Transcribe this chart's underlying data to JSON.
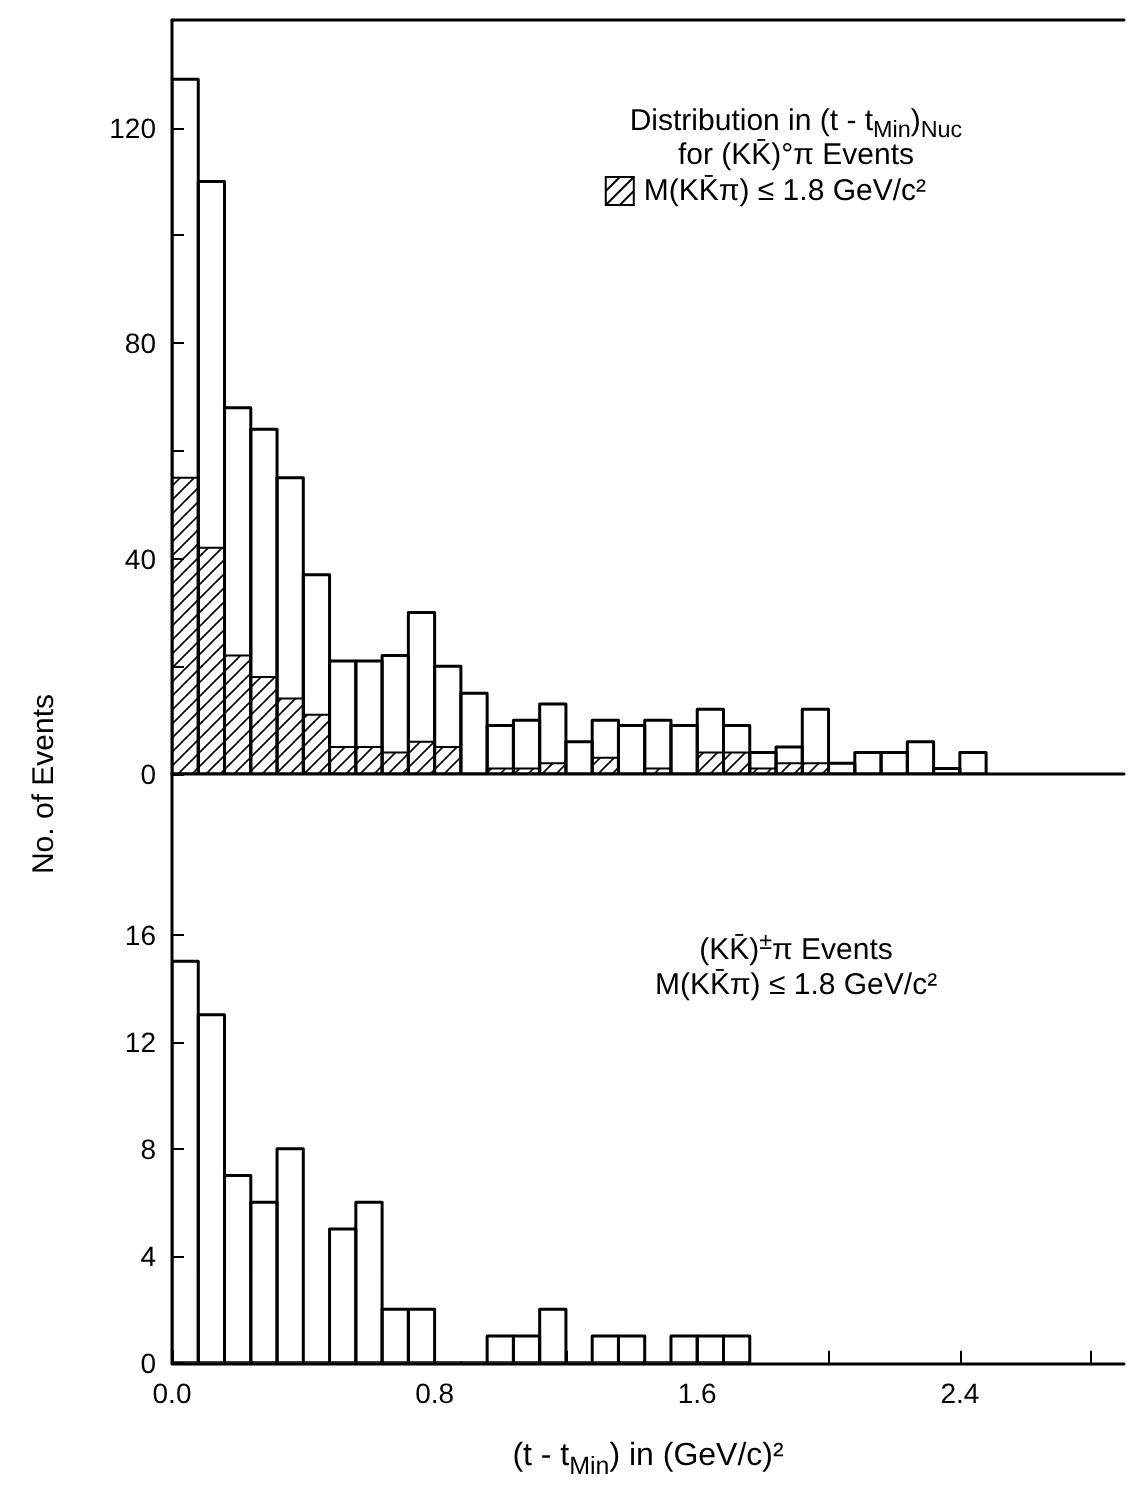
{
  "chart_data": [
    {
      "type": "histogram",
      "annotations": [
        "Distribution in (t - t$_{Min}$)$_{Nuc}$",
        "for (KK̄)°π Events"
      ],
      "ylabel": "No. of Events",
      "bins": [
        0,
        0.08,
        0.16,
        0.24,
        0.32,
        0.4,
        0.48,
        0.56,
        0.64,
        0.72,
        0.8,
        0.88,
        0.96,
        1.04,
        1.12,
        1.2,
        1.28,
        1.36,
        1.44,
        1.52,
        1.6,
        1.68,
        1.76,
        1.84,
        1.92,
        2.0,
        2.08,
        2.16,
        2.24,
        2.32,
        2.4,
        2.48
      ],
      "series": [
        {
          "color": "#000000",
          "values": [
            129,
            110,
            68,
            64,
            55,
            37,
            21,
            21,
            22,
            30,
            20,
            15,
            9,
            10,
            13,
            6,
            10,
            9,
            10,
            9,
            12,
            9,
            4,
            5,
            12,
            2,
            4,
            4,
            6,
            1,
            4
          ]
        },
        {
          "name": "M(KK̄π) ≤ 1.8 GeV/c²",
          "color": "#000000",
          "values": [
            55,
            42,
            22,
            18,
            14,
            11,
            5,
            5,
            4,
            6,
            5,
            0,
            1,
            1,
            2,
            0,
            3,
            0,
            1,
            0,
            4,
            4,
            1,
            2,
            2,
            0,
            0,
            0,
            0,
            0,
            0
          ]
        }
      ],
      "xlim": [
        0,
        2.9
      ],
      "ylim": [
        0,
        140
      ],
      "yticks": [
        0,
        {
          "value": 20,
          "label": null
        },
        40,
        {
          "value": 60,
          "label": null
        },
        80,
        {
          "value": 100,
          "label": null
        },
        120
      ],
      "tick_labels": "y",
      "legend": "top right",
      "grid": false
    },
    {
      "type": "histogram",
      "annotations": [
        "(KK̄)$^{±}$π Events",
        "M(KK̄π) ≤ 1.8 GeV/c²"
      ],
      "xlabel": "(t - t$_{Min}$) in (GeV/c)²",
      "bins": [
        0,
        0.08,
        0.16,
        0.24,
        0.32,
        0.4,
        0.48,
        0.56,
        0.64,
        0.72,
        0.8,
        0.88,
        0.96,
        1.04,
        1.12,
        1.2,
        1.28,
        1.36,
        1.44,
        1.52,
        1.6,
        1.68,
        1.76
      ],
      "values": [
        15,
        13,
        7,
        6,
        8,
        0,
        5,
        6,
        2,
        2,
        0,
        0,
        1,
        1,
        2,
        0,
        1,
        1,
        0,
        1,
        1,
        1
      ],
      "color": "#000000",
      "xlim": [
        0,
        2.9
      ],
      "ylim": [
        0,
        22
      ],
      "xticks": [
        {
          "value": 0,
          "label": "0.0"
        },
        {
          "value": 0.4,
          "label": null
        },
        0.8,
        {
          "value": 1.2,
          "label": null
        },
        1.6,
        {
          "value": 2.0,
          "label": null
        },
        2.4,
        {
          "value": 2.8,
          "label": null
        }
      ],
      "yticks": [
        0,
        4,
        8,
        12,
        16
      ],
      "grid": false
    }
  ]
}
